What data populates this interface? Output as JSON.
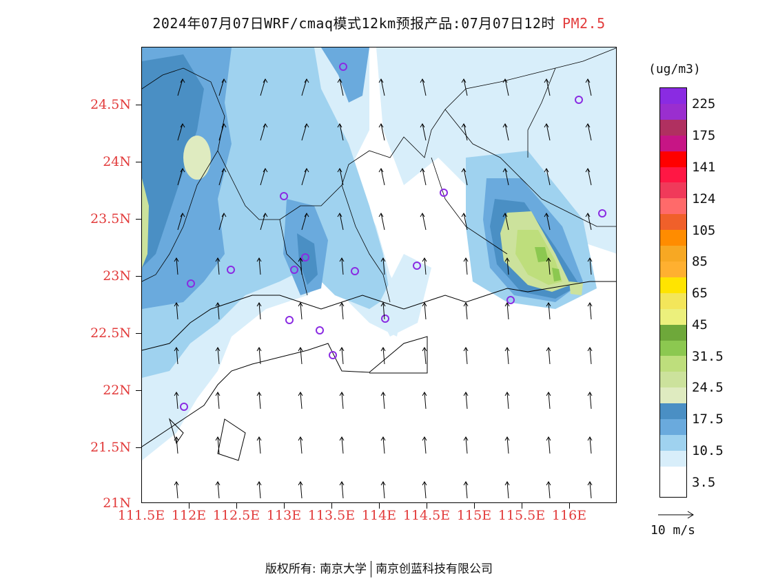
{
  "title": {
    "main": "2024年07月07日WRF/cmaq模式12km预报产品:07月07日12时",
    "species": "PM2.5",
    "species_color": "#e23b3b"
  },
  "axes": {
    "y_labels": [
      "24.5N",
      "24N",
      "23.5N",
      "23N",
      "22.5N",
      "22N",
      "21.5N",
      "21N"
    ],
    "x_labels": [
      "111.5E",
      "112E",
      "112.5E",
      "113E",
      "113.5E",
      "114E",
      "114.5E",
      "115E",
      "115.5E",
      "116E"
    ],
    "label_color": "#e23b3b"
  },
  "legend": {
    "unit": "(ug/m3)",
    "colors": [
      "#8a2be2",
      "#9a2ecf",
      "#b03060",
      "#c71585",
      "#ff0000",
      "#ff1744",
      "#f03a5a",
      "#ff6a6a",
      "#f0602a",
      "#ff8c00",
      "#f7a823",
      "#ffb030",
      "#ffe400",
      "#f3e65a",
      "#ecf07c",
      "#6ea83a",
      "#8cc850",
      "#bede7c",
      "#cce29c",
      "#dfebc0",
      "#4a8fc4",
      "#6aaadd",
      "#9fd2ef",
      "#d8eefa",
      "#ffffff"
    ],
    "labels": [
      "225",
      "175",
      "141",
      "124",
      "105",
      "85",
      "65",
      "45",
      "31.5",
      "24.5",
      "17.5",
      "10.5",
      "3.5"
    ]
  },
  "wind_reference": "10 m/s",
  "copyright": {
    "left": "版权所有: 南京大学",
    "right": "南京创蓝科技有限公司"
  }
}
